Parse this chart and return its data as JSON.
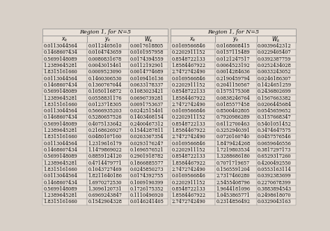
{
  "title1": "Region 1, for N=5",
  "title2": "Region 1, for N=5",
  "col1": [
    [
      "0.0113044564",
      "0.0112405610",
      "0.0017618805"
    ],
    [
      "0.1468607434",
      "0.0104743659",
      "0.0101957958"
    ],
    [
      "0.5699148089",
      "0.0080831678",
      "0.0174394559"
    ],
    [
      "1.2389645281",
      "0.0043015461",
      "0.0112192901"
    ],
    [
      "1.8315161660",
      "0.0009523090",
      "0.0014774689"
    ],
    [
      "0.0113044564",
      "0.1460306530",
      "0.0109416136"
    ],
    [
      "0.1468607434",
      "0.1360767044",
      "0.0633178337"
    ],
    [
      "0.5699148089",
      "0.1050116872",
      "0.1083023421"
    ],
    [
      "1.2389645281",
      "0.0558831176",
      "0.0696739281"
    ],
    [
      "1.8315161660",
      "0.0123718305",
      "0.0091753637"
    ],
    [
      "0.0113044564",
      "0.5666935203",
      "0.0242515401"
    ],
    [
      "0.1468607434",
      "0.5280657526",
      "0.1403408154"
    ],
    [
      "0.5699148089",
      "0.4075133642",
      "0.2400467312"
    ],
    [
      "1.2389645281",
      "0.2168626927",
      "0.1544287811"
    ],
    [
      "1.8315161660",
      "0.0480107160",
      "0.0203367354"
    ],
    [
      "0.0113044564",
      "1.2319616179",
      "0.0293176247"
    ],
    [
      "0.1468607434",
      "1.1479869022",
      "0.1696576521"
    ],
    [
      "0.5699148089",
      "0.8859124120",
      "0.2901918782"
    ],
    [
      "1.2389645281",
      "0.4714479771",
      "0.1866885577"
    ],
    [
      "1.8315161660",
      "0.1043727469",
      "0.0245850273"
    ],
    [
      "0.0113044564",
      "1.8211640186",
      "0.0174392755"
    ],
    [
      "0.1468607434",
      "1.6970272530",
      "0.1009190399"
    ],
    [
      "0.5699148089",
      "1.3096120731",
      "0.1726175352"
    ],
    [
      "1.2389645281",
      "0.6969243847",
      "0.1110496920"
    ],
    [
      "1.8315161660",
      "0.1542904328",
      "0.0146241405"
    ]
  ],
  "col2": [
    [
      "0.0169566846",
      "0.0168608415",
      "0.0039642312"
    ],
    [
      "0.2202911152",
      "0.0157115489",
      "0.0229405407"
    ],
    [
      "0.8548722133",
      "0.0121247517",
      "0.0392387759"
    ],
    [
      "1.8584467922",
      "0.0064523192",
      "0.0252434028"
    ],
    [
      "2.7472742490",
      "0.0014284636",
      "0.0033243052"
    ],
    [
      "0.0169566846",
      "0.2190459794",
      "0.0246186307"
    ],
    [
      "0.2202911152",
      "0.2041150567",
      "0.1424651259"
    ],
    [
      "0.8548722133",
      "0.1575175308",
      "0.2436802699"
    ],
    [
      "1.8584467922",
      "0.0838246764",
      "0.1567663382"
    ],
    [
      "2.7472742490",
      "0.0185577458",
      "0.0206445684"
    ],
    [
      "0.0169566846",
      "0.8500402805",
      "0.0545659652"
    ],
    [
      "0.2202911152",
      "0.7920986289",
      "0.3157668347"
    ],
    [
      "0.8548722133",
      "0.6112700463",
      "0.5401051452"
    ],
    [
      "1.8584467922",
      "0.3252940391",
      "0.3474647575"
    ],
    [
      "2.7472742490",
      "0.0720160740",
      "0.0457576546"
    ],
    [
      "0.0169566846",
      "1.8479424268",
      "0.0659646556"
    ],
    [
      "0.2202911152",
      "1.7219803534",
      "0.3817297173"
    ],
    [
      "0.8548722133",
      "1.3288686180",
      "0.6529317260"
    ],
    [
      "1.8584467922",
      "0.7071719657",
      "0.4200492550"
    ],
    [
      "2.7472742490",
      "0.1565591204",
      "0.0553163114"
    ],
    [
      "0.0169566846",
      "2.7317460280",
      "0.0392383699"
    ],
    [
      "0.2202911152",
      "2.5455408796",
      "0.2270678399"
    ],
    [
      "0.8548722133",
      "1.9644181096",
      "0.3883894543"
    ],
    [
      "1.8584467922",
      "1.0453865771",
      "0.2498618070"
    ],
    [
      "2.7472742490",
      "0.2314856492",
      "0.0329043163"
    ]
  ],
  "bg_color": "#d8d0c8",
  "cell_bg": "#e8e0d8",
  "line_color": "#888888",
  "text_color": "#000000",
  "font_size": 4.8,
  "header_font_size": 5.5,
  "title_font_size": 5.8
}
